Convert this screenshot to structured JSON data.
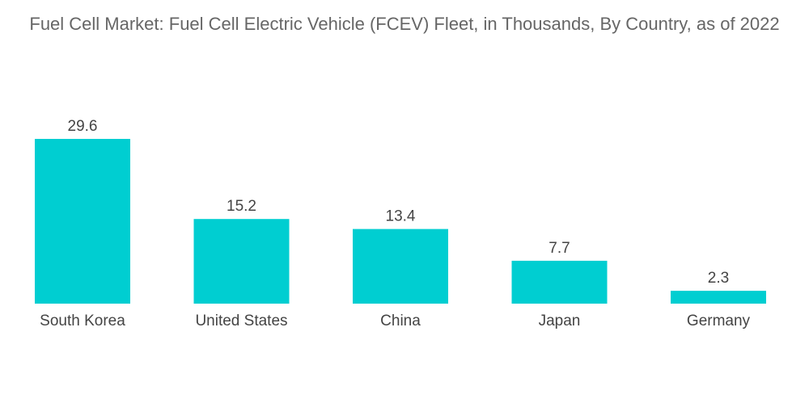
{
  "chart_data": {
    "type": "bar",
    "title": "Fuel Cell Market: Fuel Cell Electric Vehicle (FCEV) Fleet, in Thousands, By Country, as of 2022",
    "categories": [
      "South Korea",
      "United States",
      "China",
      "Japan",
      "Germany"
    ],
    "values": [
      29.6,
      15.2,
      13.4,
      7.7,
      2.3
    ],
    "value_labels": [
      "29.6",
      "15.2",
      "13.4",
      "7.7",
      "2.3"
    ],
    "xlabel": "",
    "ylabel": "",
    "ylim": [
      0,
      29.6
    ],
    "grid": false,
    "legend": "none",
    "bar_color": "#00CED1"
  }
}
